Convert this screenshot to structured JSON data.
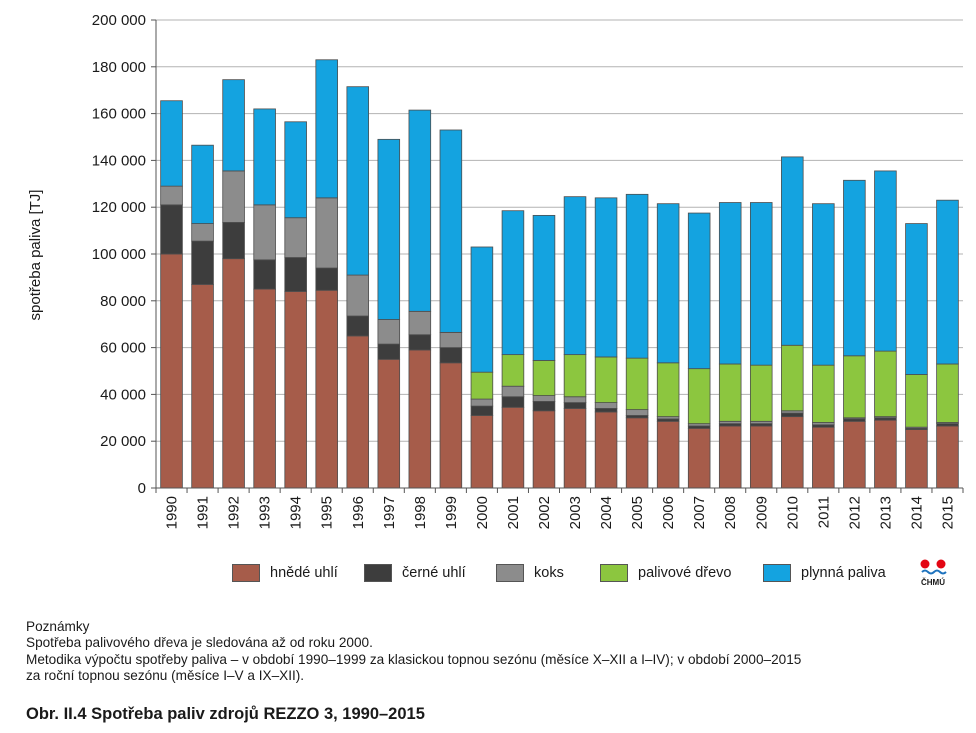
{
  "chart_data": {
    "type": "bar",
    "stacked": true,
    "title": "",
    "xlabel": "",
    "ylabel": "spotřeba paliva [TJ]",
    "ylim": [
      0,
      200000
    ],
    "yticks": [
      0,
      20000,
      40000,
      60000,
      80000,
      100000,
      120000,
      140000,
      160000,
      180000,
      200000
    ],
    "ytick_labels": [
      "0",
      "20 000",
      "40 000",
      "60 000",
      "80 000",
      "100 000",
      "120 000",
      "140 000",
      "160 000",
      "180 000",
      "200 000"
    ],
    "grid": true,
    "legend_position": "bottom",
    "categories": [
      "1990",
      "1991",
      "1992",
      "1993",
      "1994",
      "1995",
      "1996",
      "1997",
      "1998",
      "1999",
      "2000",
      "2001",
      "2002",
      "2003",
      "2004",
      "2005",
      "2006",
      "2007",
      "2008",
      "2009",
      "2010",
      "2011",
      "2012",
      "2013",
      "2014",
      "2015"
    ],
    "series": [
      {
        "name": "hnědé uhlí",
        "color": "#a65c4a",
        "values": [
          100000,
          87000,
          98000,
          85000,
          84000,
          84500,
          65000,
          55000,
          59000,
          53500,
          31000,
          34500,
          33000,
          34000,
          32500,
          30000,
          28500,
          25500,
          26500,
          26500,
          30500,
          26000,
          28500,
          29000,
          25000,
          26500
        ]
      },
      {
        "name": "černé uhlí",
        "color": "#3d3d3d",
        "values": [
          21000,
          18500,
          15500,
          12500,
          14500,
          9500,
          8500,
          6500,
          6500,
          6500,
          4000,
          4500,
          4000,
          2500,
          1500,
          1000,
          1000,
          1000,
          1000,
          1000,
          1500,
          1000,
          1000,
          1000,
          500,
          1000
        ]
      },
      {
        "name": "koks",
        "color": "#8c8c8c",
        "values": [
          8000,
          7500,
          22000,
          23500,
          17000,
          30000,
          17500,
          10500,
          10000,
          6500,
          3000,
          4500,
          2500,
          2500,
          2500,
          2500,
          1000,
          1000,
          1000,
          1000,
          1000,
          1000,
          500,
          500,
          500,
          500
        ]
      },
      {
        "name": "palivové dřevo",
        "color": "#8cc63f",
        "values": [
          0,
          0,
          0,
          0,
          0,
          0,
          0,
          0,
          0,
          0,
          11500,
          13500,
          15000,
          18000,
          19500,
          22000,
          23000,
          23500,
          24500,
          24000,
          28000,
          24500,
          26500,
          28000,
          22500,
          25000
        ]
      },
      {
        "name": "plynná paliva",
        "color": "#14a3e0",
        "values": [
          36500,
          33500,
          39000,
          41000,
          41000,
          59000,
          80500,
          77000,
          86000,
          86500,
          53500,
          61500,
          62000,
          67500,
          68000,
          70000,
          68000,
          66500,
          69000,
          69500,
          80500,
          69000,
          75000,
          77000,
          64500,
          70000
        ]
      }
    ]
  },
  "logo": {
    "text": "ČHMÚ",
    "colors": [
      "#e30613",
      "#1e73be"
    ]
  },
  "notes": {
    "heading": "Poznámky",
    "line1": "Spotřeba palivového dřeva je sledována až od roku 2000.",
    "line2": "Metodika výpočtu spotřeby paliva – v období 1990–1999 za klasickou topnou sezónu (měsíce X–XII a I–IV); v období 2000–2015",
    "line3": "za roční topnou sezónu (měsíce I–V a IX–XII)."
  },
  "caption": "Obr. II.4  Spotřeba paliv zdrojů REZZO 3, 1990–2015"
}
